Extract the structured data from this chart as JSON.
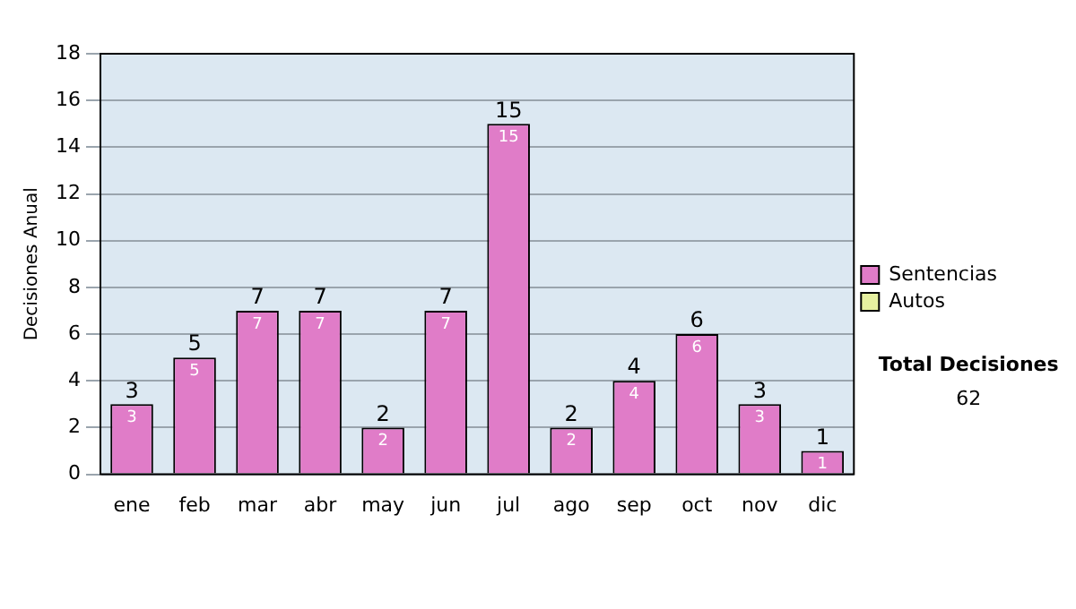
{
  "chart_data": {
    "type": "bar",
    "ylabel": "Decisiones Anual",
    "categories": [
      "ene",
      "feb",
      "mar",
      "abr",
      "may",
      "jun",
      "jul",
      "ago",
      "sep",
      "oct",
      "nov",
      "dic"
    ],
    "series": [
      {
        "name": "Sentencias",
        "color": "#e07cc8",
        "values": [
          3,
          5,
          7,
          7,
          2,
          7,
          15,
          2,
          4,
          6,
          3,
          1
        ],
        "value_labels": [
          "3",
          "5",
          "7",
          "7",
          "2",
          "7",
          "15",
          "2",
          "4",
          "6",
          "3",
          "1"
        ]
      },
      {
        "name": "Autos",
        "color": "#e6f0a0",
        "values": [
          0,
          0,
          0,
          0,
          0,
          0,
          0,
          0,
          0,
          0,
          0,
          0
        ]
      }
    ],
    "stacked": true,
    "totals": [
      "3",
      "5",
      "7",
      "7",
      "2",
      "7",
      "15",
      "2",
      "4",
      "6",
      "3",
      "1"
    ],
    "ylim": [
      0,
      18
    ],
    "yticks": [
      0,
      2,
      4,
      6,
      8,
      10,
      12,
      14,
      16,
      18
    ],
    "grid": "y",
    "legend": "right",
    "annotations": [
      "Total Decisiones",
      "62"
    ]
  }
}
